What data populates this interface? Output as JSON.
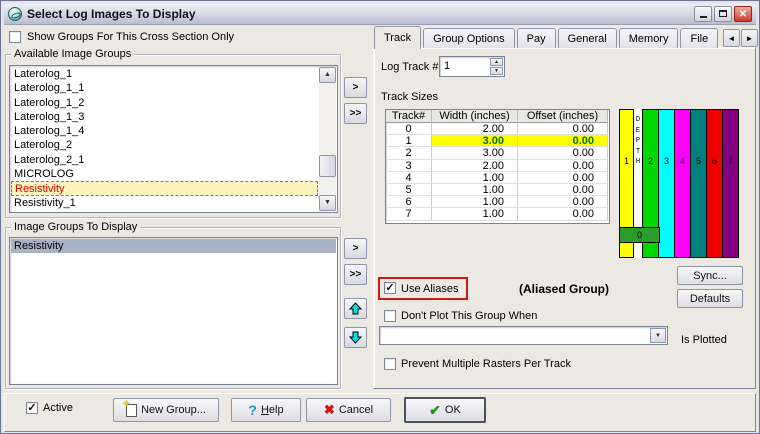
{
  "window": {
    "title": "Select Log Images To Display",
    "controls": {
      "close": "✕"
    }
  },
  "icons": {
    "check": "✓",
    "up_small": "▲",
    "down_small": "▼",
    "left_arrow": "◄",
    "right_arrow": "►",
    "help": "?",
    "cancel": "✖",
    "ok": "✔",
    "spark": "✦"
  },
  "colors": {
    "available_selection_bg": "#fbf3bd",
    "available_selection_text": "#dd0000",
    "available_selection_border": "#2e9a9a",
    "display_selection_bg": "#a8b2c4",
    "row_highlight_bg": "#ffff00",
    "row_highlight_text": "#007000",
    "annotation_box": "#d01818"
  },
  "left": {
    "show_groups_checkbox": {
      "label": "Show Groups For This Cross Section Only",
      "checked": false
    },
    "available_groups": {
      "title": "Available Image Groups",
      "items": [
        "Laterolog_1",
        "Laterolog_1_1",
        "Laterolog_1_2",
        "Laterolog_1_3",
        "Laterolog_1_4",
        "Laterolog_2",
        "Laterolog_2_1",
        "MICROLOG",
        "Resistivity",
        "Resistivity_1"
      ],
      "selected_item": "Resistivity"
    },
    "display_groups": {
      "title": "Image Groups To Display",
      "items": [
        "Resistivity"
      ],
      "selected_item": "Resistivity"
    }
  },
  "transfer": {
    "add": ">",
    "add_all": ">>"
  },
  "tabs": {
    "items": [
      "Track",
      "Group Options",
      "Pay",
      "General",
      "Memory",
      "File"
    ],
    "active": "Track"
  },
  "track_tab": {
    "log_track_label": "Log Track #",
    "log_track_value": "1",
    "track_sizes_label": "Track Sizes",
    "table": {
      "headers": [
        "Track#",
        "Width (inches)",
        "Offset (inches)"
      ],
      "rows": [
        [
          "0",
          "2.00",
          "0.00"
        ],
        [
          "1",
          "3.00",
          "0.00"
        ],
        [
          "2",
          "3.00",
          "0.00"
        ],
        [
          "3",
          "2.00",
          "0.00"
        ],
        [
          "4",
          "1.00",
          "0.00"
        ],
        [
          "5",
          "1.00",
          "0.00"
        ],
        [
          "6",
          "1.00",
          "0.00"
        ],
        [
          "7",
          "1.00",
          "0.00"
        ]
      ],
      "highlighted_row": 1
    },
    "preview": {
      "track1": {
        "label": "1",
        "color": "#ffff00"
      },
      "depth_column": {
        "label": "DEPTH",
        "color": "#ffffff"
      },
      "tracks": [
        {
          "label": "2",
          "color": "#00d800"
        },
        {
          "label": "3",
          "color": "#00ffff"
        },
        {
          "label": "4",
          "color": "#ff00ff"
        },
        {
          "label": "5",
          "color": "#008080"
        },
        {
          "label": "6",
          "color": "#ee0000"
        },
        {
          "label": "7",
          "color": "#800080"
        }
      ],
      "zero_bar": {
        "label": "0",
        "color": "#2e9b2e"
      }
    },
    "sync_button": "Sync...",
    "defaults_button": "Defaults",
    "use_aliases": {
      "label": "Use Aliases",
      "checked": true
    },
    "aliased_group_label": "(Aliased Group)",
    "dont_plot_checkbox": {
      "label": "Don't Plot This Group When",
      "checked": false
    },
    "plot_condition_combo": {
      "value": ""
    },
    "is_plotted_label": "Is Plotted",
    "prevent_multiple_checkbox": {
      "label": "Prevent Multiple Rasters Per Track",
      "checked": false
    }
  },
  "footer": {
    "active_checkbox": {
      "label": "Active",
      "checked": true
    },
    "new_group_button": "New Group...",
    "help_underline": "H",
    "help_rest": "elp",
    "cancel_button": "Cancel",
    "ok_button": "OK"
  }
}
